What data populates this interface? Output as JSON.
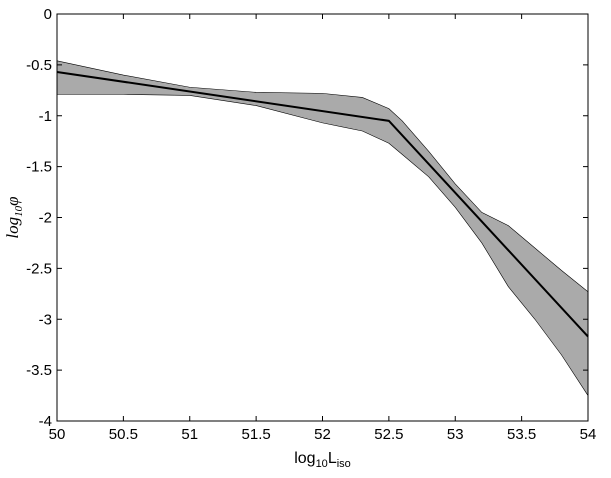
{
  "chart_data": {
    "type": "line-band",
    "xlabel": [
      "log",
      "10",
      "L",
      "iso"
    ],
    "ylabel": [
      "log",
      "10",
      "φ"
    ],
    "xlim": [
      50,
      54
    ],
    "ylim": [
      -4,
      0
    ],
    "xticks": [
      50,
      50.5,
      51,
      51.5,
      52,
      52.5,
      53,
      53.5,
      54
    ],
    "yticks": [
      0,
      -0.5,
      -1,
      -1.5,
      -2,
      -2.5,
      -3,
      -3.5,
      -4
    ],
    "line": {
      "color": "#000000",
      "x": [
        50,
        52.5,
        54
      ],
      "values": [
        -0.57,
        -1.05,
        -3.17
      ]
    },
    "band": {
      "color": "#aaaaaa",
      "x": [
        50,
        50.5,
        51,
        51.5,
        52,
        52.3,
        52.5,
        52.6,
        52.8,
        53,
        53.2,
        53.4,
        53.6,
        53.8,
        54
      ],
      "upper": [
        -0.46,
        -0.6,
        -0.72,
        -0.77,
        -0.78,
        -0.82,
        -0.93,
        -1.05,
        -1.35,
        -1.67,
        -1.95,
        -2.08,
        -2.3,
        -2.52,
        -2.73
      ],
      "lower": [
        -0.79,
        -0.79,
        -0.8,
        -0.9,
        -1.07,
        -1.15,
        -1.27,
        -1.38,
        -1.6,
        -1.9,
        -2.25,
        -2.68,
        -3.0,
        -3.35,
        -3.75
      ]
    }
  }
}
